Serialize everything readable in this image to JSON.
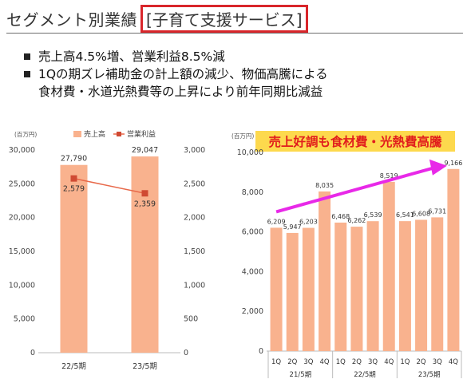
{
  "header": {
    "title_prefix": "セグメント別業績",
    "title_boxed": "[子育て支援サービス]"
  },
  "bullets": [
    "売上高4.5%増、営業利益8.5%減",
    "1Qの期ズレ補助金の計上額の減少、物価高騰による",
    "食材費・水道光熱費等の上昇により前年同期比減益"
  ],
  "colors": {
    "bar": "#f9b28e",
    "line": "#e8694a",
    "marker": "#d04a33",
    "annotation_bg": "#fdd94d",
    "annotation_text": "#e11d1d",
    "trend_arrow": "#e829e8",
    "title_box_border": "#d9262b"
  },
  "chart_data": [
    {
      "type": "bar",
      "unit_label": "(百万円)",
      "categories": [
        "22/5期",
        "23/5期"
      ],
      "series": [
        {
          "name": "売上高",
          "axis": "left",
          "values": [
            27790,
            29047
          ],
          "labels": [
            "27,790",
            "29,047"
          ]
        },
        {
          "name": "営業利益",
          "axis": "right",
          "kind": "line",
          "values": [
            2579,
            2359
          ],
          "labels": [
            "2,579",
            "2,359"
          ]
        }
      ],
      "ylim_left": [
        0,
        30000
      ],
      "ylim_right": [
        0,
        3000
      ],
      "yticks_left": [
        "0",
        "5,000",
        "10,000",
        "15,000",
        "20,000",
        "25,000",
        "30,000"
      ],
      "yticks_right": [
        "0",
        "500",
        "1,000",
        "1,500",
        "2,000",
        "2,500",
        "3,000"
      ],
      "legend": "top"
    },
    {
      "type": "bar",
      "unit_label": "(百万円)",
      "title": "売上好調も食材費・光熱費高騰",
      "categories": [
        "1Q",
        "2Q",
        "3Q",
        "4Q",
        "1Q",
        "2Q",
        "3Q",
        "4Q",
        "1Q",
        "2Q",
        "3Q",
        "4Q"
      ],
      "groups": [
        "21/5期",
        "22/5期",
        "23/5期"
      ],
      "values": [
        6209,
        5947,
        6203,
        8035,
        6468,
        6262,
        6539,
        8519,
        6541,
        6608,
        6731,
        9166
      ],
      "labels": [
        "6,209",
        "5,947",
        "6,203",
        "8,035",
        "6,468",
        "6,262",
        "6,539",
        "8,519",
        "6,541",
        "6,608",
        "6,731",
        "9,166"
      ],
      "ylim": [
        0,
        10000
      ],
      "yticks": [
        "0",
        "2,000",
        "4,000",
        "6,000",
        "8,000",
        "10,000"
      ]
    }
  ]
}
